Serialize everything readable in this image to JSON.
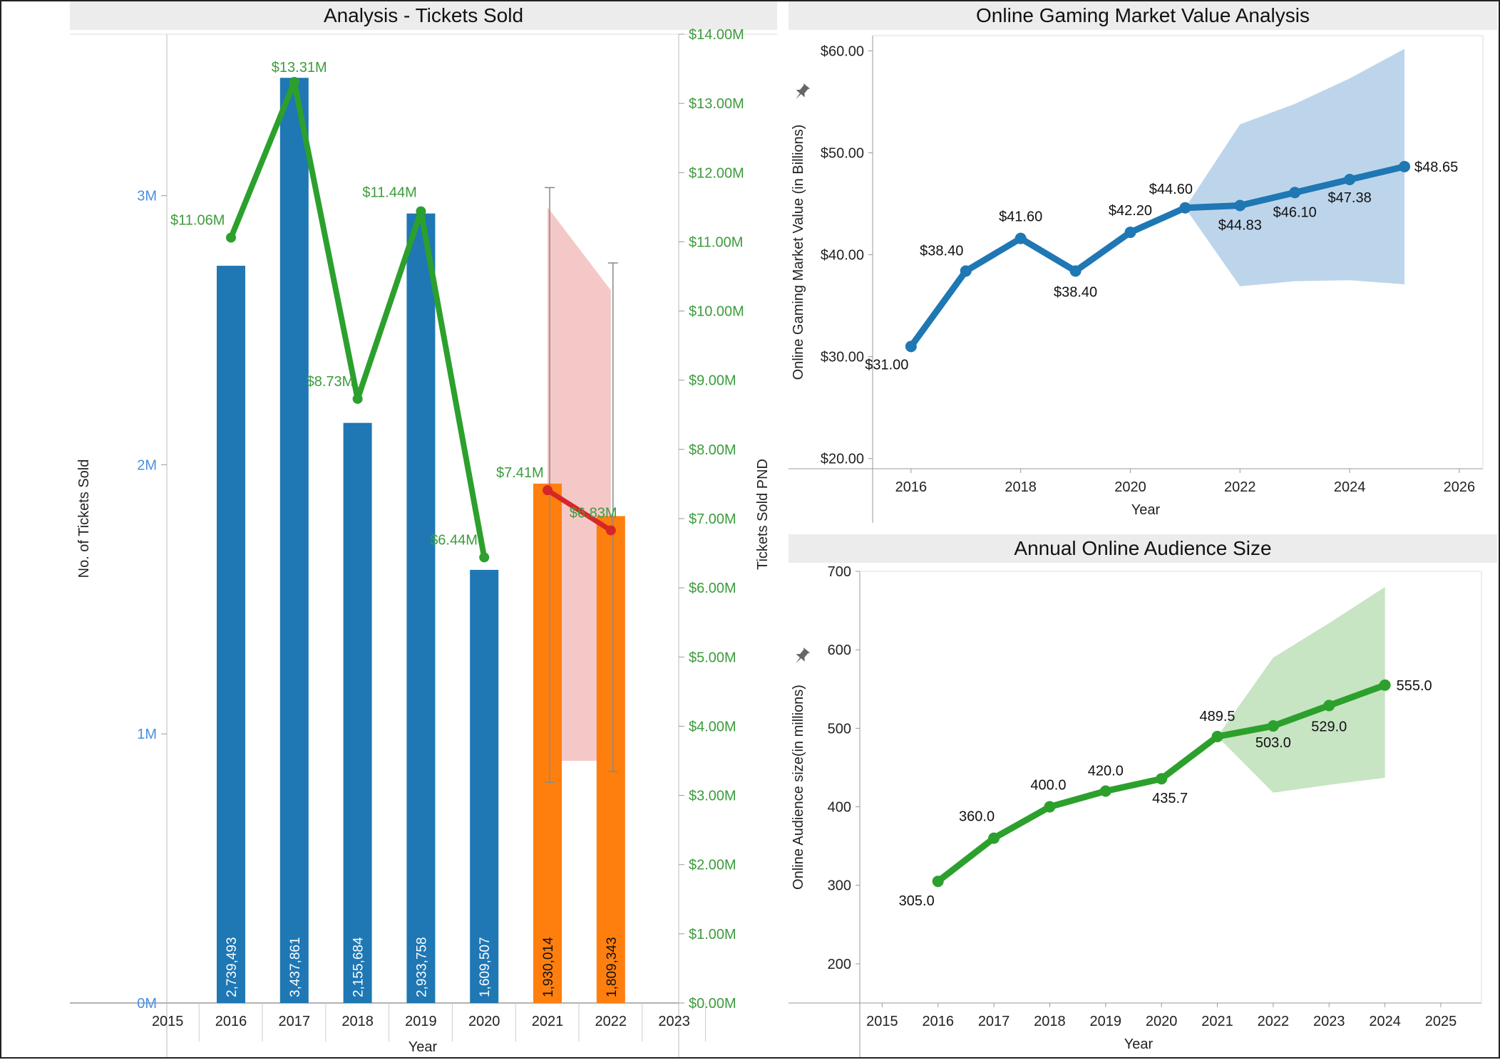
{
  "chart_data": [
    {
      "type": "bar",
      "title": "Analysis - Tickets Sold",
      "xlabel": "Year",
      "ylabel": "No. of Tickets Sold",
      "y2label": "Tickets Sold PND",
      "x_ticks": [
        "2015",
        "2016",
        "2017",
        "2018",
        "2019",
        "2020",
        "2021",
        "2022",
        "2023"
      ],
      "y_ticks": [
        "0M",
        "1M",
        "2M",
        "3M"
      ],
      "y2_ticks": [
        "$0.00M",
        "$1.00M",
        "$2.00M",
        "$3.00M",
        "$4.00M",
        "$5.00M",
        "$6.00M",
        "$7.00M",
        "$8.00M",
        "$9.00M",
        "$10.00M",
        "$11.00M",
        "$12.00M",
        "$13.00M",
        "$14.00M"
      ],
      "ylim": [
        0,
        3600000
      ],
      "y2lim": [
        0,
        14000000
      ],
      "colors": {
        "actual": "#1f77b4",
        "forecast": "#ff7f0e",
        "revenue_line": "#2ca02c",
        "forecast_line": "#d62728",
        "forecast_band": "#f4c2c2"
      },
      "bars": [
        {
          "year": 2016,
          "value": 2739493,
          "label": "2,739,493",
          "forecast": false
        },
        {
          "year": 2017,
          "value": 3437861,
          "label": "3,437,861",
          "forecast": false
        },
        {
          "year": 2018,
          "value": 2155684,
          "label": "2,155,684",
          "forecast": false
        },
        {
          "year": 2019,
          "value": 2933758,
          "label": "2,933,758",
          "forecast": false
        },
        {
          "year": 2020,
          "value": 1609507,
          "label": "1,609,507",
          "forecast": false
        },
        {
          "year": 2021,
          "value": 1930014,
          "label": "1,930,014",
          "forecast": true
        },
        {
          "year": 2022,
          "value": 1809343,
          "label": "1,809,343",
          "forecast": true
        }
      ],
      "revenue": [
        {
          "year": 2016,
          "value": 11060000,
          "label": "$11.06M"
        },
        {
          "year": 2017,
          "value": 13310000,
          "label": "$13.31M"
        },
        {
          "year": 2018,
          "value": 8730000,
          "label": "$8.73M"
        },
        {
          "year": 2019,
          "value": 11440000,
          "label": "$11.44M"
        },
        {
          "year": 2020,
          "value": 6440000,
          "label": "$6.44M"
        }
      ],
      "revenue_forecast": [
        {
          "year": 2021,
          "value": 7410000,
          "label": "$7.41M"
        },
        {
          "year": 2022,
          "value": 6830000,
          "label": "$6.83M"
        }
      ],
      "forecast_band": [
        {
          "year": 2021,
          "low": 3500000,
          "high": 11500000
        },
        {
          "year": 2022,
          "low": 3500000,
          "high": 10300000
        }
      ],
      "error_bars": [
        {
          "year": 2021,
          "low": 820000,
          "high": 3030000
        },
        {
          "year": 2022,
          "low": 860000,
          "high": 2750000
        }
      ]
    },
    {
      "type": "line",
      "title": "Online Gaming Market Value Analysis",
      "xlabel": "Year",
      "ylabel": "Online Gaming Market Value (in Billions)",
      "x_ticks": [
        "2016",
        "2018",
        "2020",
        "2022",
        "2024",
        "2026"
      ],
      "y_ticks": [
        "$20.00",
        "$30.00",
        "$40.00",
        "$50.00",
        "$60.00"
      ],
      "xlim": [
        2015.3,
        2026.3
      ],
      "ylim": [
        19.0,
        61.5
      ],
      "color": "#1f77b4",
      "band_color": "#b9d3ea",
      "points": [
        {
          "year": 2016,
          "value": 31.0,
          "label": "$31.00"
        },
        {
          "year": 2017,
          "value": 38.4,
          "label": "$38.40"
        },
        {
          "year": 2018,
          "value": 41.6,
          "label": "$41.60"
        },
        {
          "year": 2019,
          "value": 38.4,
          "label": "$38.40"
        },
        {
          "year": 2020,
          "value": 42.2,
          "label": "$42.20"
        },
        {
          "year": 2021,
          "value": 44.6,
          "label": "$44.60"
        },
        {
          "year": 2022,
          "value": 44.83,
          "label": "$44.83"
        },
        {
          "year": 2023,
          "value": 46.1,
          "label": "$46.10"
        },
        {
          "year": 2024,
          "value": 47.38,
          "label": "$47.38"
        },
        {
          "year": 2025,
          "value": 48.65,
          "label": "$48.65"
        }
      ],
      "band": [
        {
          "year": 2021,
          "low": 44.6,
          "high": 44.6
        },
        {
          "year": 2022,
          "low": 36.9,
          "high": 52.8
        },
        {
          "year": 2023,
          "low": 37.4,
          "high": 54.8
        },
        {
          "year": 2024,
          "low": 37.5,
          "high": 57.3
        },
        {
          "year": 2025,
          "low": 37.1,
          "high": 60.2
        }
      ]
    },
    {
      "type": "line",
      "title": "Annual Online Audience Size",
      "xlabel": "Year",
      "ylabel": "Online Audience size(in millions)",
      "x_ticks": [
        "2015",
        "2016",
        "2017",
        "2018",
        "2019",
        "2020",
        "2021",
        "2022",
        "2023",
        "2024",
        "2025"
      ],
      "y_ticks": [
        "200",
        "300",
        "400",
        "500",
        "600",
        "700"
      ],
      "xlim": [
        2014.6,
        2025.6
      ],
      "ylim": [
        150,
        700
      ],
      "color": "#2ca02c",
      "band_color": "#c4e3c0",
      "points": [
        {
          "year": 2016,
          "value": 305.0,
          "label": "305.0"
        },
        {
          "year": 2017,
          "value": 360.0,
          "label": "360.0"
        },
        {
          "year": 2018,
          "value": 400.0,
          "label": "400.0"
        },
        {
          "year": 2019,
          "value": 420.0,
          "label": "420.0"
        },
        {
          "year": 2020,
          "value": 435.7,
          "label": "435.7"
        },
        {
          "year": 2021,
          "value": 489.5,
          "label": "489.5"
        },
        {
          "year": 2022,
          "value": 503.0,
          "label": "503.0"
        },
        {
          "year": 2023,
          "value": 529.0,
          "label": "529.0"
        },
        {
          "year": 2024,
          "value": 555.0,
          "label": "555.0"
        }
      ],
      "band": [
        {
          "year": 2021,
          "low": 489.5,
          "high": 489.5
        },
        {
          "year": 2022,
          "low": 418,
          "high": 590
        },
        {
          "year": 2023,
          "low": 428,
          "high": 634
        },
        {
          "year": 2024,
          "low": 437,
          "high": 680
        }
      ]
    }
  ]
}
